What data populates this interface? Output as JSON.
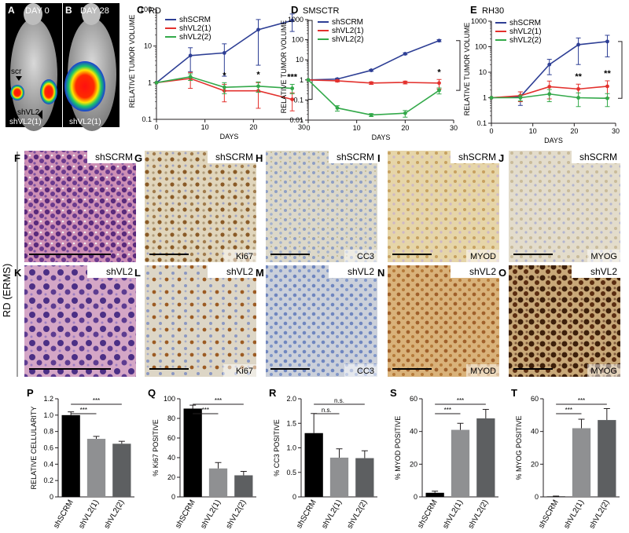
{
  "panels": {
    "A": {
      "letter": "A",
      "day": "DAY 0",
      "scr": "scr",
      "shv": "shVL2",
      "bottom": "shVL2(1)"
    },
    "B": {
      "letter": "B",
      "day": "DAY 28",
      "bottom": "shVL2(1)"
    }
  },
  "side_label": "RD (ERMS)",
  "micro": [
    {
      "letter": "F",
      "label": "shSCRM",
      "marker": ""
    },
    {
      "letter": "G",
      "label": "shSCRM",
      "marker": "Ki67"
    },
    {
      "letter": "H",
      "label": "shSCRM",
      "marker": "CC3"
    },
    {
      "letter": "I",
      "label": "shSCRM",
      "marker": "MYOD"
    },
    {
      "letter": "J",
      "label": "shSCRM",
      "marker": "MYOG"
    },
    {
      "letter": "K",
      "label": "shVL2",
      "marker": ""
    },
    {
      "letter": "L",
      "label": "shVL2",
      "marker": "Ki67"
    },
    {
      "letter": "M",
      "label": "shVL2",
      "marker": "CC3"
    },
    {
      "letter": "N",
      "label": "shVL2",
      "marker": "MYOD"
    },
    {
      "letter": "O",
      "label": "shVL2",
      "marker": "MYOG"
    }
  ],
  "colors": {
    "shSCRM": "#2e3f95",
    "shVL2_1": "#e3312d",
    "shVL2_2": "#33a94a",
    "bar_ctrl": "#000000",
    "bar_1": "#8f9092",
    "bar_2": "#5d5f61"
  },
  "chart_data": [
    {
      "id": "C",
      "type": "line",
      "title": "RD",
      "xlabel": "DAYS",
      "ylabel": "RELATIVE TUMOR VOLUME",
      "yscale": "log",
      "ylim": [
        0.1,
        100
      ],
      "yticks": [
        "0.1",
        "1",
        "10",
        "100"
      ],
      "xlim": [
        0,
        30
      ],
      "xticks": [
        "0",
        "10",
        "20",
        "30"
      ],
      "series": [
        {
          "name": "shSCRM",
          "x": [
            0,
            7,
            14,
            21,
            28
          ],
          "y": [
            1,
            5.5,
            6.5,
            28,
            50
          ],
          "err": [
            0,
            3.5,
            5,
            25,
            25
          ]
        },
        {
          "name": "shVL2(1)",
          "x": [
            0,
            7,
            14,
            21,
            28
          ],
          "y": [
            1,
            1.3,
            0.6,
            0.6,
            0.35
          ],
          "err": [
            0,
            0.6,
            0.3,
            0.4,
            0.18
          ]
        },
        {
          "name": "shVL2(2)",
          "x": [
            0,
            7,
            14,
            21,
            28
          ],
          "y": [
            1,
            1.45,
            0.75,
            0.8,
            0.7
          ],
          "err": [
            0,
            0.3,
            0.25,
            0.25,
            0.2
          ]
        }
      ],
      "annotations": [
        {
          "x": 14,
          "text": "*"
        },
        {
          "x": 21,
          "text": "*"
        },
        {
          "x": 28,
          "text": "***"
        }
      ]
    },
    {
      "id": "D",
      "type": "line",
      "title": "SMSCTR",
      "xlabel": "DAYS",
      "ylabel": "RELATIVE TUMOR VOLUME",
      "yscale": "log",
      "ylim": [
        0.01,
        1000
      ],
      "yticks": [
        "0.01",
        "0.1",
        "1",
        "10",
        "100",
        "1000"
      ],
      "xlim": [
        0,
        30
      ],
      "xticks": [
        "0",
        "10",
        "20",
        "30"
      ],
      "series": [
        {
          "name": "shSCRM",
          "x": [
            0,
            6,
            13,
            20,
            27
          ],
          "y": [
            1,
            1.1,
            3,
            20,
            90
          ],
          "err": [
            0,
            0.1,
            0.3,
            2,
            10
          ]
        },
        {
          "name": "shVL2(1)",
          "x": [
            0,
            6,
            13,
            20,
            27
          ],
          "y": [
            1,
            0.9,
            0.7,
            0.75,
            0.7
          ],
          "err": [
            0,
            0.1,
            0.1,
            0.12,
            0.35
          ]
        },
        {
          "name": "shVL2(2)",
          "x": [
            0,
            6,
            13,
            20,
            27
          ],
          "y": [
            1,
            0.04,
            0.018,
            0.022,
            0.3
          ],
          "err": [
            0,
            0.012,
            0.003,
            0.008,
            0.1
          ]
        }
      ],
      "annotations": [
        {
          "x": 27,
          "text": "*"
        }
      ]
    },
    {
      "id": "E",
      "type": "line",
      "title": "RH30",
      "xlabel": "DAYS",
      "ylabel": "RELATIVE TUMOR VOLUME",
      "yscale": "log",
      "ylim": [
        0.1,
        1000
      ],
      "yticks": [
        "0.1",
        "1",
        "10",
        "100",
        "1000"
      ],
      "xlim": [
        0,
        30
      ],
      "xticks": [
        "0",
        "10",
        "20",
        "30"
      ],
      "series": [
        {
          "name": "shSCRM",
          "x": [
            0,
            7,
            14,
            21,
            28
          ],
          "y": [
            1,
            1.1,
            20,
            120,
            160
          ],
          "err": [
            0,
            0.6,
            12,
            100,
            120
          ]
        },
        {
          "name": "shVL2(1)",
          "x": [
            0,
            7,
            14,
            21,
            28
          ],
          "y": [
            1,
            1.2,
            2.7,
            2.2,
            2.8
          ],
          "err": [
            0,
            0.5,
            1.8,
            1.2,
            1.8
          ]
        },
        {
          "name": "shVL2(2)",
          "x": [
            0,
            7,
            14,
            21,
            28
          ],
          "y": [
            1,
            1,
            1.4,
            1,
            0.95
          ],
          "err": [
            0,
            0.25,
            0.7,
            0.55,
            0.5
          ]
        }
      ],
      "annotations": [
        {
          "x": 21,
          "text": "**"
        },
        {
          "x": 28,
          "text": "**"
        }
      ]
    },
    {
      "id": "P",
      "type": "bar",
      "ylabel": "RELATIVE CELLULARITY",
      "categories": [
        "shSCRM",
        "shVL2(1)",
        "shVL2(2)"
      ],
      "values": [
        1.0,
        0.71,
        0.65
      ],
      "errors": [
        0.04,
        0.03,
        0.03
      ],
      "ylim": [
        0,
        1.2
      ],
      "yticks": [
        "0",
        "0.2",
        "0.4",
        "0.6",
        "0.8",
        "1.0",
        "1.2"
      ],
      "sig": [
        {
          "from": 0,
          "to": 1,
          "text": "***"
        },
        {
          "from": 0,
          "to": 2,
          "text": "***"
        }
      ]
    },
    {
      "id": "Q",
      "type": "bar",
      "ylabel": "% Ki67 POSITIVE",
      "categories": [
        "shSCRM",
        "shVL2(1)",
        "shVL2(2)"
      ],
      "values": [
        90,
        29,
        22
      ],
      "errors": [
        3.5,
        6,
        4
      ],
      "ylim": [
        0,
        100
      ],
      "yticks": [
        "0",
        "20",
        "40",
        "60",
        "80",
        "100"
      ],
      "sig": [
        {
          "from": 0,
          "to": 1,
          "text": "***"
        },
        {
          "from": 0,
          "to": 2,
          "text": "***"
        }
      ]
    },
    {
      "id": "R",
      "type": "bar",
      "ylabel": "% CC3 POSITIVE",
      "categories": [
        "shSCRM",
        "shVL2(1)",
        "shVL2(2)"
      ],
      "values": [
        1.3,
        0.8,
        0.79
      ],
      "errors": [
        0.4,
        0.18,
        0.15
      ],
      "ylim": [
        0,
        2.0
      ],
      "yticks": [
        "0",
        "0.5",
        "1.0",
        "1.5",
        "2.0"
      ],
      "sig": [
        {
          "from": 0,
          "to": 1,
          "text": "n.s."
        },
        {
          "from": 0,
          "to": 2,
          "text": "n.s."
        }
      ]
    },
    {
      "id": "S",
      "type": "bar",
      "ylabel": "% MYOD POSITIVE",
      "categories": [
        "shSCRM",
        "shVL2(1)",
        "shVL2(2)"
      ],
      "values": [
        2.5,
        41,
        48
      ],
      "errors": [
        1,
        4,
        5.5
      ],
      "ylim": [
        0,
        60
      ],
      "yticks": [
        "0",
        "20",
        "40",
        "60"
      ],
      "sig": [
        {
          "from": 0,
          "to": 1,
          "text": "***"
        },
        {
          "from": 0,
          "to": 2,
          "text": "***"
        }
      ]
    },
    {
      "id": "T",
      "type": "bar",
      "ylabel": "% MYOG POSITIVE",
      "categories": [
        "shSCRM",
        "shVL2(1)",
        "shVL2(2)"
      ],
      "values": [
        0.3,
        42,
        47
      ],
      "errors": [
        0.2,
        5.5,
        7
      ],
      "ylim": [
        0,
        60
      ],
      "yticks": [
        "0",
        "20",
        "40",
        "60"
      ],
      "sig": [
        {
          "from": 0,
          "to": 1,
          "text": "***"
        },
        {
          "from": 0,
          "to": 2,
          "text": "***"
        }
      ]
    }
  ]
}
